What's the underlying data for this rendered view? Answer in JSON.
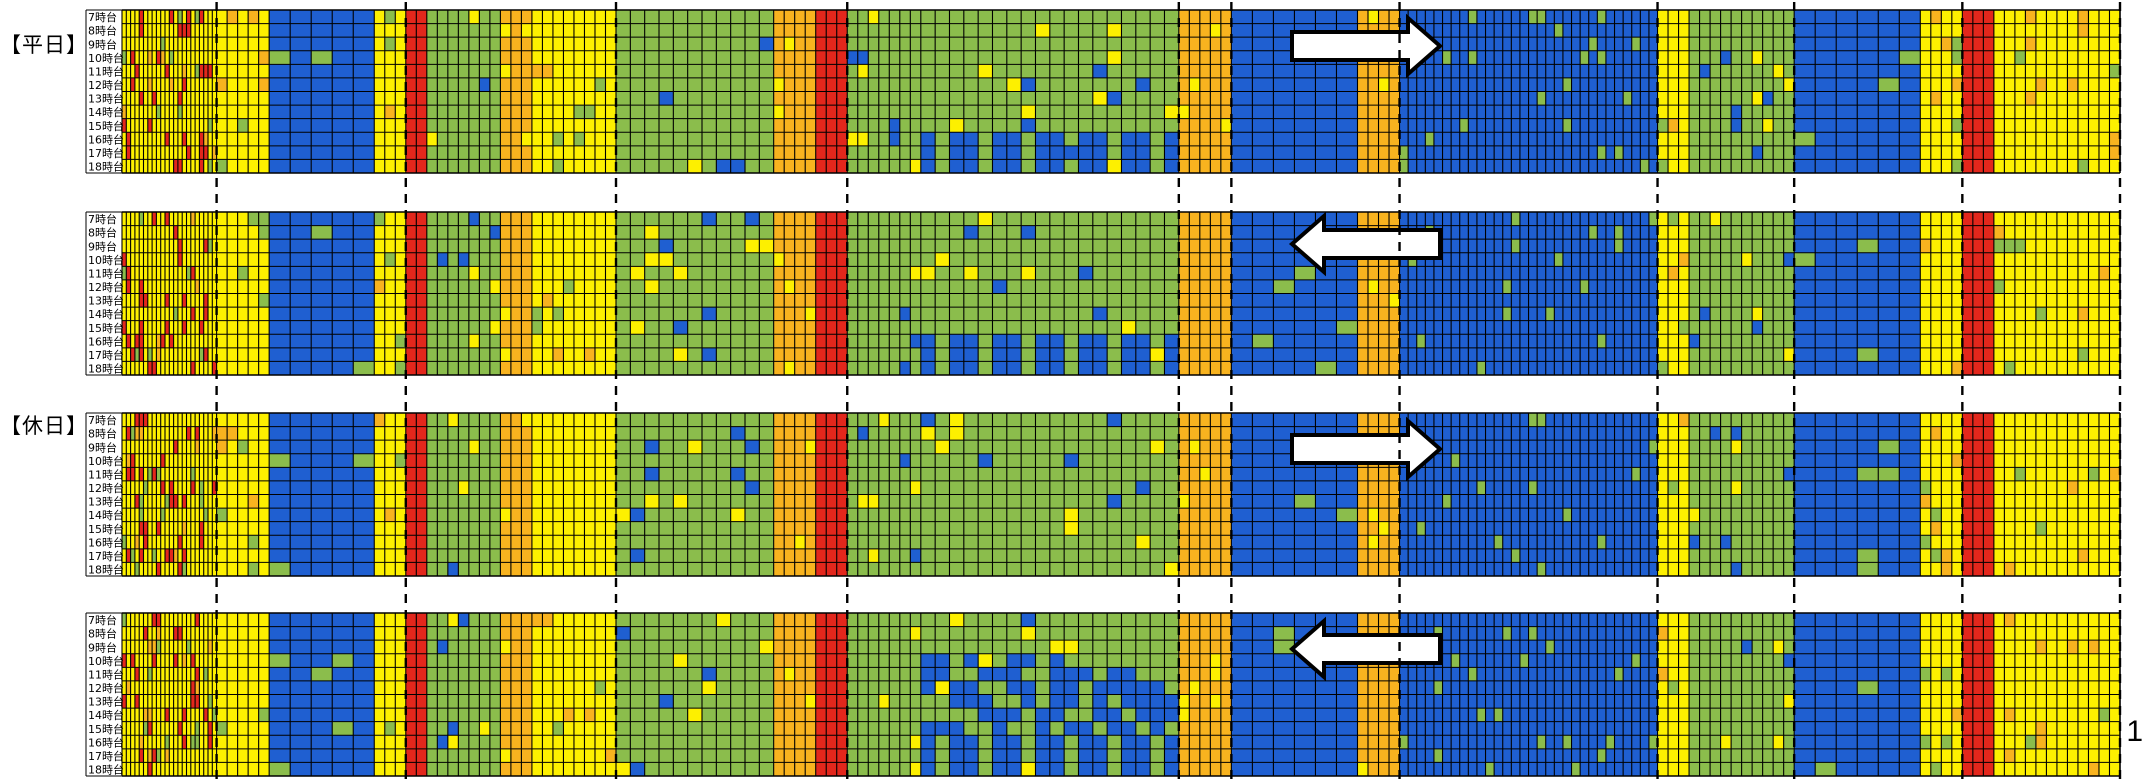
{
  "group_labels": {
    "weekday": "【平日】",
    "holiday": "【休日】"
  },
  "page_number": "1",
  "colors": {
    "blue": "#1f5fd1",
    "green": "#8bbd4c",
    "yellow": "#fdf000",
    "orange": "#f8b31f",
    "red": "#e3271c",
    "line": "#000000"
  },
  "chart_data": {
    "type": "heatmap",
    "row_labels": [
      "7時台",
      "8時台",
      "9時台",
      "10時台",
      "11時台",
      "12時台",
      "13時台",
      "14時台",
      "15時台",
      "16時台",
      "17時台",
      "18時台"
    ],
    "panels": [
      {
        "group": "weekday",
        "direction": "right"
      },
      {
        "group": "weekday",
        "direction": "left"
      },
      {
        "group": "holiday",
        "direction": "right"
      },
      {
        "group": "holiday",
        "direction": "left"
      }
    ],
    "segments": [
      {
        "columns": 22,
        "base": "yellow",
        "accent": "red"
      },
      {
        "columns": 5,
        "base": "yellow"
      },
      {
        "columns": 5,
        "base": "blue"
      },
      {
        "columns": 3,
        "base": "yellow"
      },
      {
        "columns": 2,
        "base": "red"
      },
      {
        "columns": 7,
        "base": "green"
      },
      {
        "columns": 3,
        "base": "orange"
      },
      {
        "columns": 8,
        "base": "yellow"
      },
      {
        "columns": 11,
        "base": "green"
      },
      {
        "columns": 4,
        "base": "orange"
      },
      {
        "columns": 3,
        "base": "red"
      },
      {
        "columns": 7,
        "base": "green"
      },
      {
        "columns": 18,
        "base": "green"
      },
      {
        "columns": 5,
        "base": "orange"
      },
      {
        "columns": 6,
        "base": "blue"
      },
      {
        "columns": 4,
        "base": "orange"
      },
      {
        "columns": 30,
        "base": "blue"
      },
      {
        "columns": 3,
        "base": "yellow"
      },
      {
        "columns": 10,
        "base": "green"
      },
      {
        "columns": 6,
        "base": "blue"
      },
      {
        "columns": 4,
        "base": "yellow"
      },
      {
        "columns": 3,
        "base": "red"
      },
      {
        "columns": 12,
        "base": "yellow"
      }
    ],
    "divider_after_segment": [
      0,
      3,
      7,
      10,
      12,
      13,
      15,
      16,
      18,
      20,
      22
    ],
    "legend": "none",
    "grid": true
  }
}
